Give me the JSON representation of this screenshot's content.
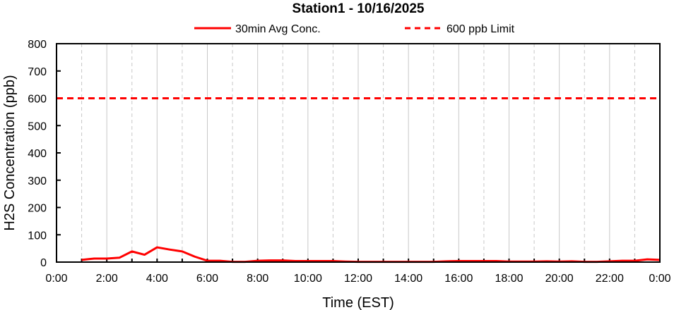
{
  "chart_data": {
    "type": "line",
    "title": "Station1  - 10/16/2025",
    "xlabel": "Time (EST)",
    "ylabel": "H2S Concentration (ppb)",
    "xlim_hours": [
      0,
      24
    ],
    "ylim": [
      0,
      800
    ],
    "x_ticks": [
      "0:00",
      "2:00",
      "4:00",
      "6:00",
      "8:00",
      "10:00",
      "12:00",
      "14:00",
      "16:00",
      "18:00",
      "20:00",
      "22:00",
      "0:00"
    ],
    "y_ticks": [
      0,
      100,
      200,
      300,
      400,
      500,
      600,
      700,
      800
    ],
    "grid": "vertical",
    "legend_position": "top",
    "series": [
      {
        "name": "30min Avg Conc.",
        "color": "#ff0000",
        "style": "solid",
        "x_hours": [
          1,
          1.5,
          2,
          2.5,
          3,
          3.5,
          4,
          4.5,
          5,
          5.5,
          6,
          6.5,
          7,
          7.5,
          8,
          8.5,
          9,
          9.5,
          10,
          10.5,
          11,
          11.5,
          12,
          12.5,
          13,
          13.5,
          14,
          14.5,
          15,
          15.5,
          16,
          16.5,
          17,
          17.5,
          18,
          18.5,
          19,
          19.5,
          20,
          20.5,
          21,
          21.5,
          22,
          22.5,
          23,
          23.5,
          24
        ],
        "values": [
          8,
          13,
          13,
          16,
          39,
          27,
          54,
          46,
          39,
          20,
          5,
          5,
          1,
          1,
          5,
          6,
          6,
          4,
          4,
          4,
          4,
          2,
          1,
          1,
          1,
          1,
          1,
          1,
          1,
          3,
          4,
          4,
          4,
          4,
          2,
          2,
          2,
          3,
          2,
          3,
          1,
          1,
          3,
          5,
          5,
          10,
          8
        ]
      },
      {
        "name": "600 ppb Limit",
        "color": "#ff0000",
        "style": "dashed",
        "values": [
          600
        ]
      }
    ]
  }
}
